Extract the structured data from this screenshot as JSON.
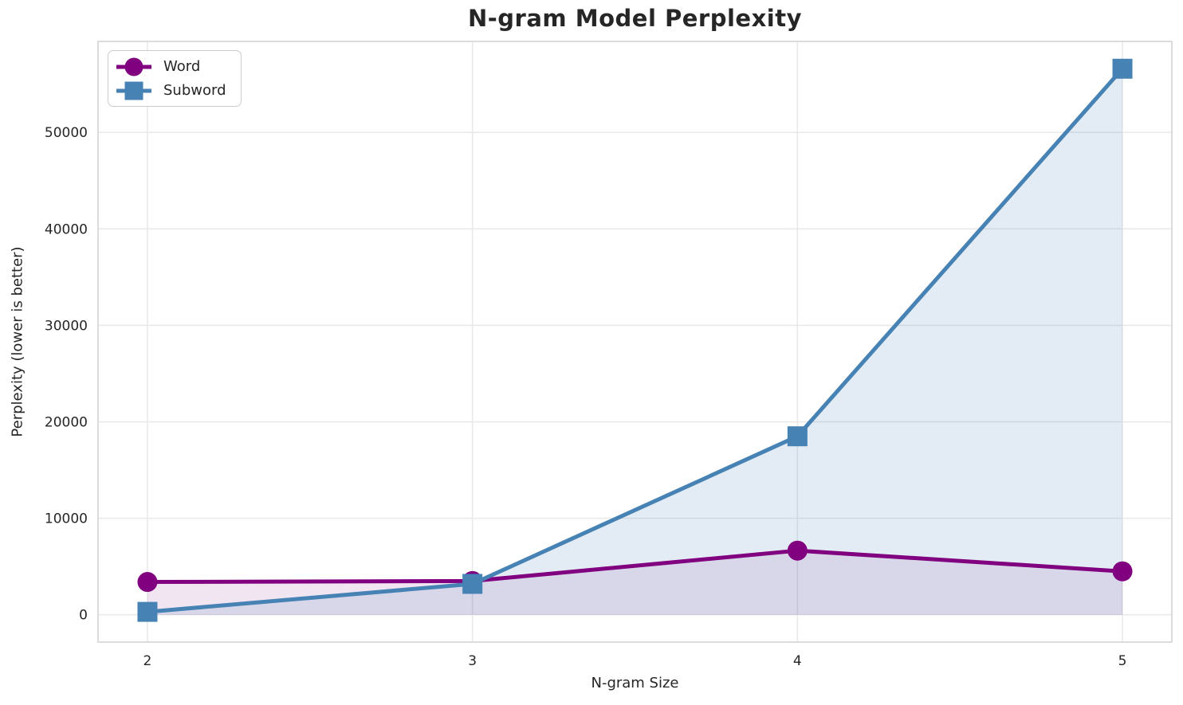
{
  "chart_data": {
    "type": "line",
    "title": "N-gram Model Perplexity",
    "xlabel": "N-gram Size",
    "ylabel": "Perplexity (lower is better)",
    "x": [
      2,
      3,
      4,
      5
    ],
    "series": [
      {
        "name": "Word",
        "marker": "circle",
        "color": "#800080",
        "fill_opacity": 0.1,
        "values": [
          3400,
          3500,
          6650,
          4500
        ]
      },
      {
        "name": "Subword",
        "marker": "square",
        "color": "#4682B4",
        "fill_opacity": 0.15,
        "values": [
          300,
          3200,
          18500,
          56600
        ]
      }
    ],
    "xticks": [
      2,
      3,
      4,
      5
    ],
    "yticks": [
      0,
      10000,
      20000,
      30000,
      40000,
      50000
    ],
    "xlim": [
      1.848,
      5.152
    ],
    "ylim": [
      -2830,
      59430
    ],
    "grid": true,
    "area_fill": true,
    "fill_baseline": 0,
    "legend_position": "upper left"
  },
  "style": {
    "background": "#ffffff",
    "grid_color": "#e9e9e9",
    "spine_color": "#d9d9d9",
    "text_color": "#262626",
    "line_width": 5,
    "marker_size": 25
  }
}
